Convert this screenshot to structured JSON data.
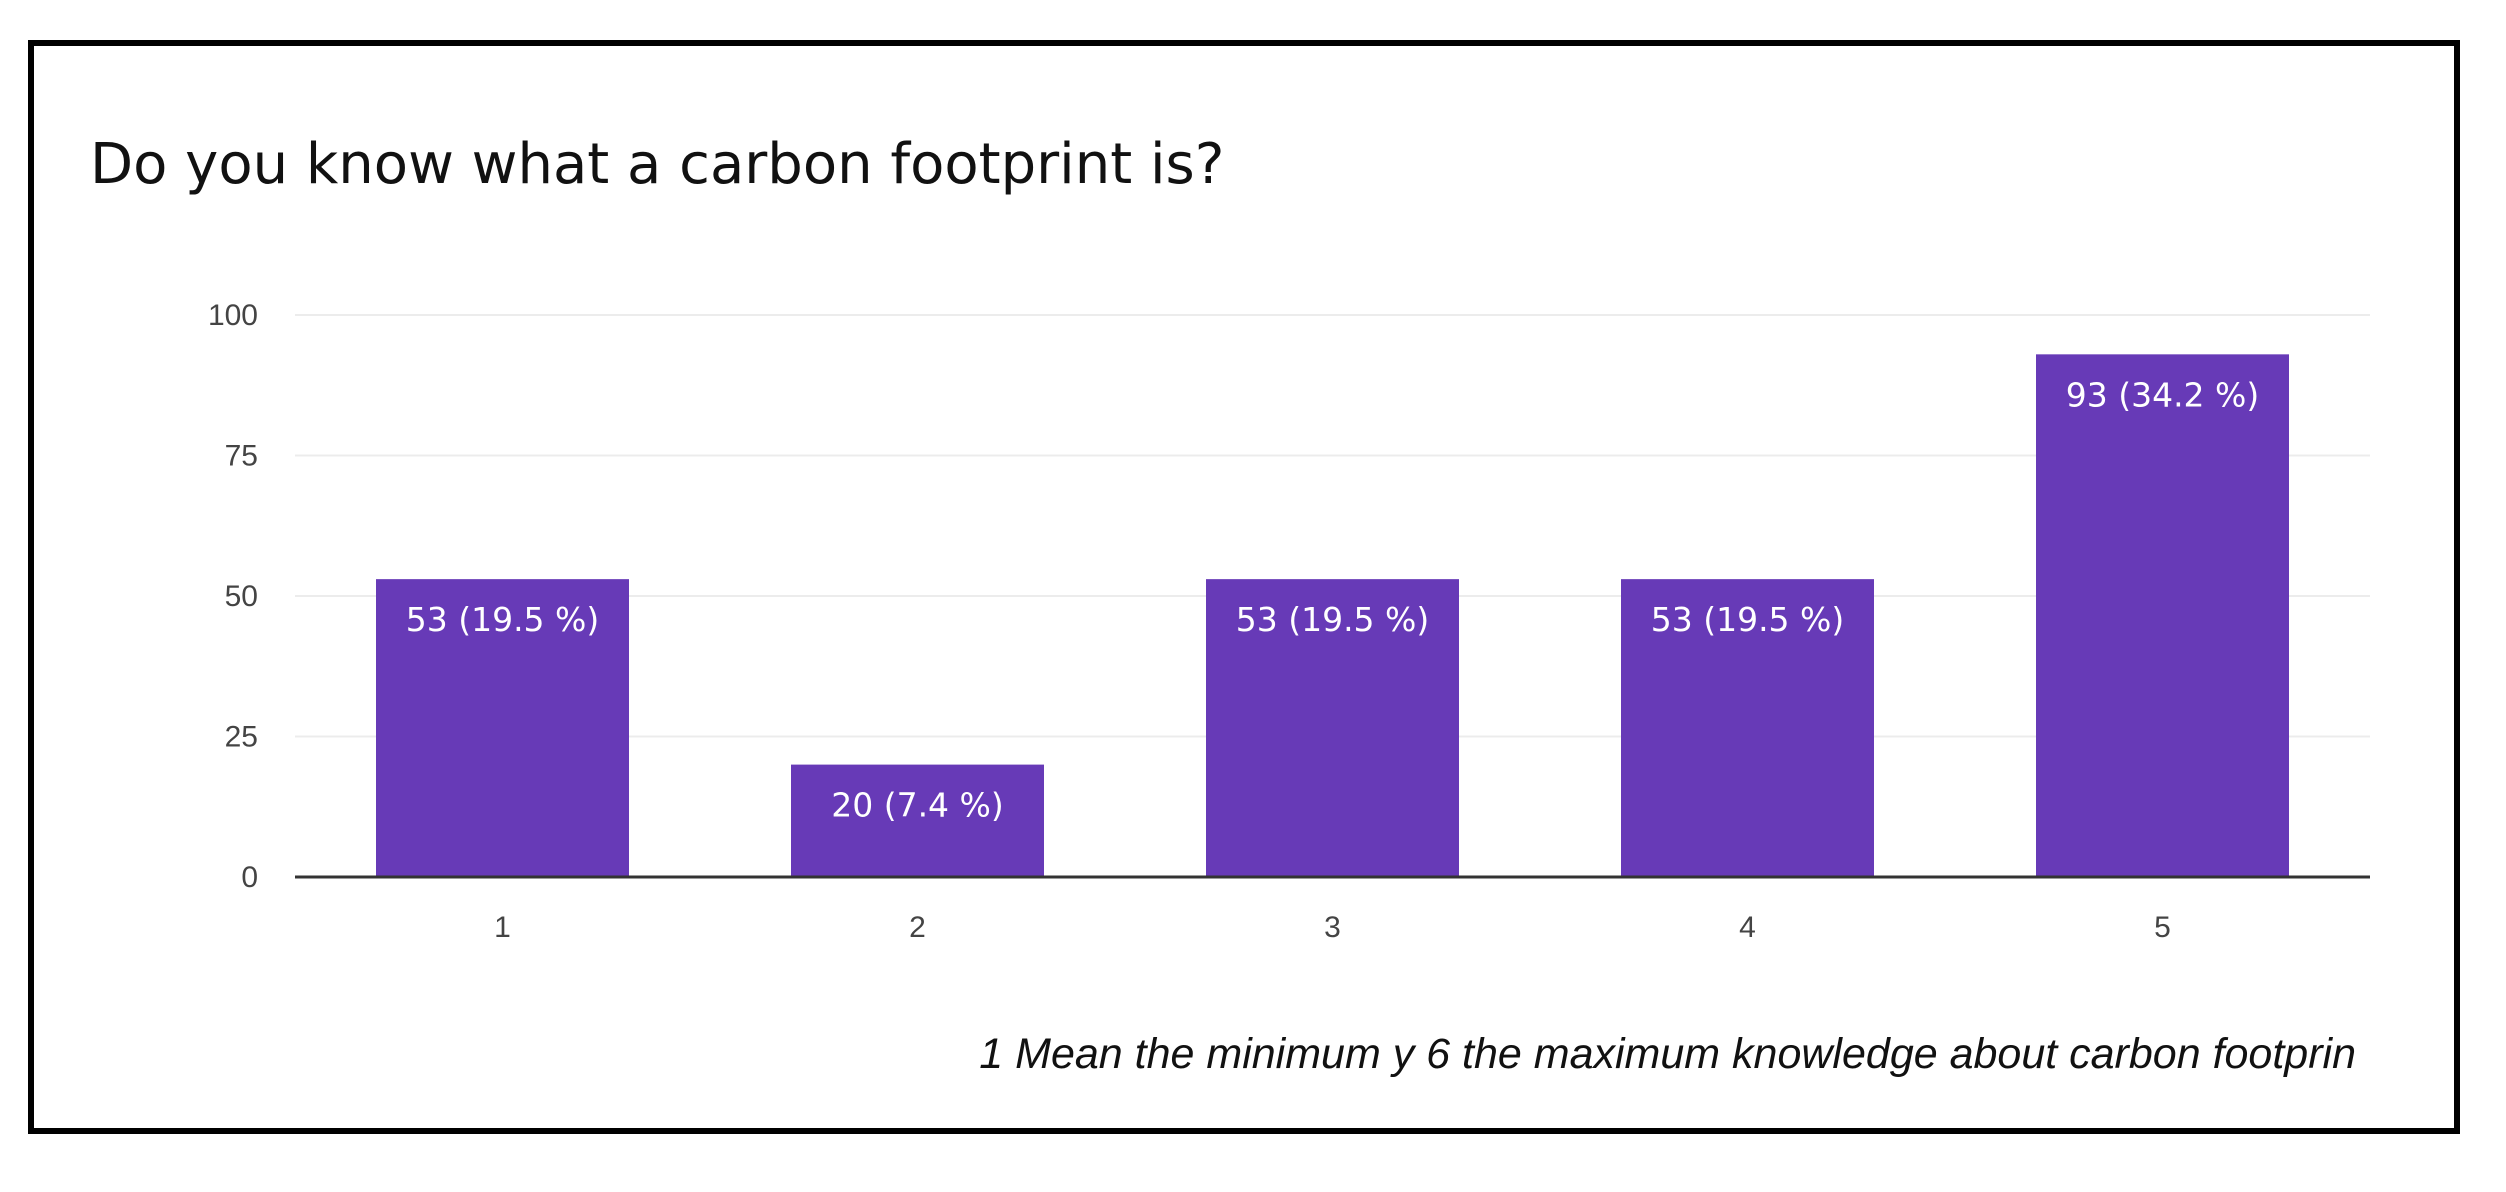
{
  "chart_data": {
    "type": "bar",
    "title": "Do you know what a carbon footprint is?",
    "categories": [
      "1",
      "2",
      "3",
      "4",
      "5"
    ],
    "values": [
      53,
      20,
      53,
      53,
      93
    ],
    "data_labels": [
      "53 (19.5 %)",
      "20 (7.4 %)",
      "53 (19.5 %)",
      "53 (19.5 %)",
      "93  (34.2 %)"
    ],
    "xlabel": "",
    "ylabel": "",
    "ylim": [
      0,
      100
    ],
    "yticks": [
      "0",
      "25",
      "50",
      "75",
      "100"
    ],
    "grid": true,
    "legend": "none",
    "bar_color": "#673ab7",
    "note": "1  Mean the minimum y 6 the maximum knowledge about carbon footprin"
  }
}
